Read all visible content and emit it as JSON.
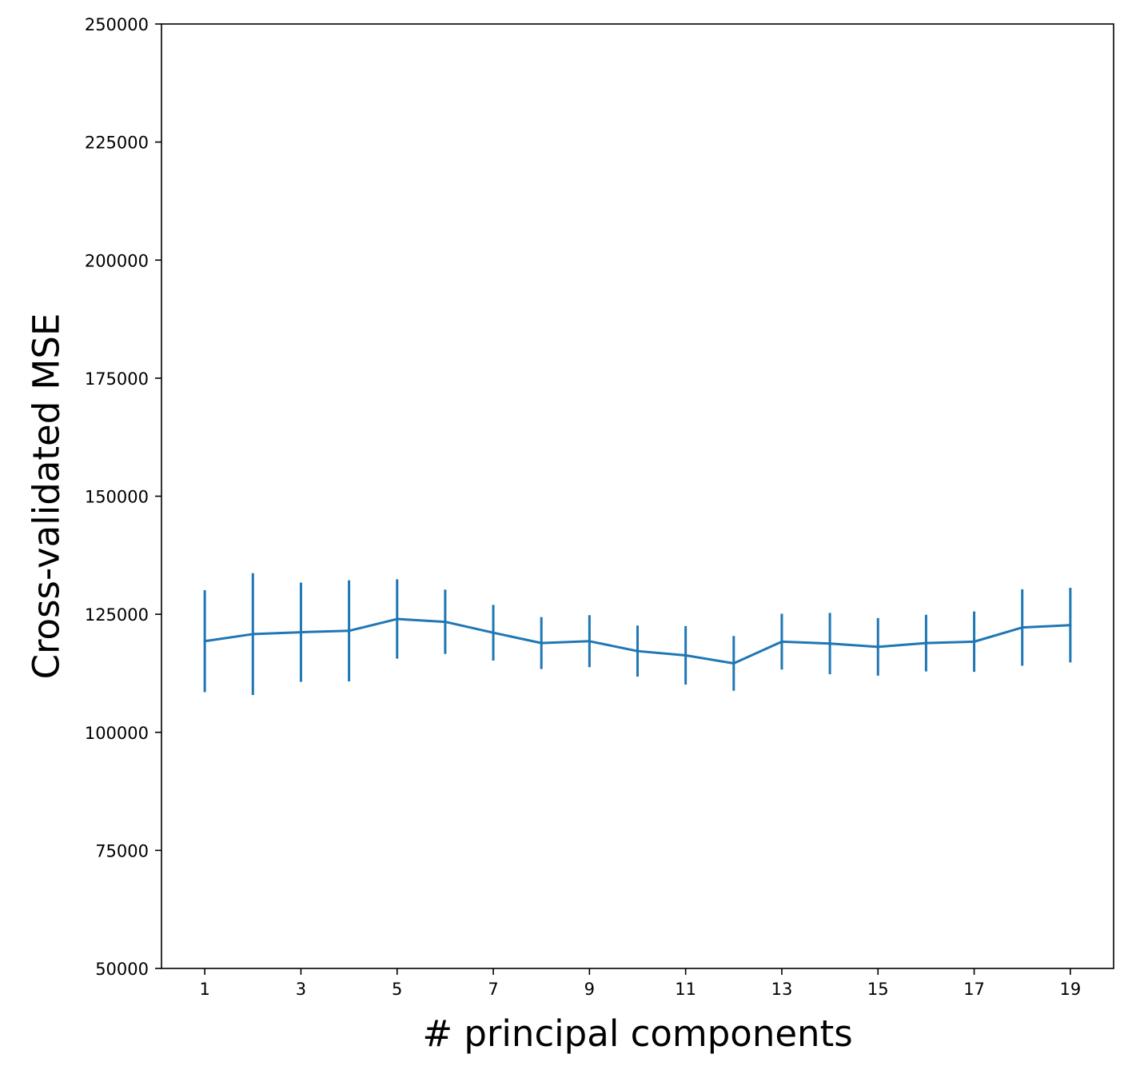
{
  "chart_data": {
    "type": "line",
    "xlabel": "# principal components",
    "ylabel": "Cross-validated MSE",
    "xlim": [
      0.1,
      19.9
    ],
    "ylim": [
      50000,
      250000
    ],
    "x": [
      1,
      2,
      3,
      4,
      5,
      6,
      7,
      8,
      9,
      10,
      11,
      12,
      13,
      14,
      15,
      16,
      17,
      18,
      19
    ],
    "x_ticks": [
      1,
      3,
      5,
      7,
      9,
      11,
      13,
      15,
      17,
      19
    ],
    "y_ticks": [
      50000,
      75000,
      100000,
      125000,
      150000,
      175000,
      200000,
      225000,
      250000
    ],
    "series": [
      {
        "values": [
          119300,
          120800,
          121200,
          121500,
          124000,
          123400,
          121100,
          118900,
          119300,
          117200,
          116300,
          114600,
          119200,
          118800,
          118100,
          118900,
          119200,
          122200,
          122700
        ],
        "errors": [
          10800,
          12900,
          10500,
          10700,
          8400,
          6800,
          5900,
          5500,
          5500,
          5400,
          6200,
          5800,
          5900,
          6500,
          6100,
          6000,
          6400,
          8100,
          7900
        ],
        "color": "#1f77b4"
      }
    ],
    "grid": false,
    "legend": false
  }
}
